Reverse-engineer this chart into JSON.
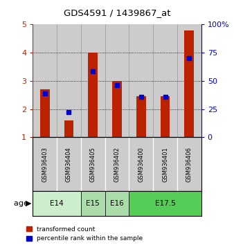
{
  "title": "GDS4591 / 1439867_at",
  "samples": [
    "GSM936403",
    "GSM936404",
    "GSM936405",
    "GSM936402",
    "GSM936400",
    "GSM936401",
    "GSM936406"
  ],
  "transformed_count": [
    2.7,
    1.6,
    4.0,
    3.0,
    2.45,
    2.45,
    4.8
  ],
  "percentile_rank": [
    2.55,
    1.9,
    3.35,
    2.85,
    2.42,
    2.42,
    3.8
  ],
  "ylim": [
    1,
    5
  ],
  "yticks": [
    1,
    2,
    3,
    4,
    5
  ],
  "y2ticks": [
    0,
    25,
    50,
    75,
    100
  ],
  "y2tick_labels": [
    "0",
    "25",
    "50",
    "75",
    "100%"
  ],
  "bar_color": "#bb2200",
  "dot_color": "#0000cc",
  "age_groups": [
    {
      "label": "E14",
      "start": 0,
      "end": 1,
      "color": "#cceecc"
    },
    {
      "label": "E15",
      "start": 2,
      "end": 2,
      "color": "#aaddaa"
    },
    {
      "label": "E16",
      "start": 3,
      "end": 3,
      "color": "#aaddaa"
    },
    {
      "label": "E17.5",
      "start": 4,
      "end": 6,
      "color": "#44cc44"
    }
  ],
  "legend_red": "transformed count",
  "legend_blue": "percentile rank within the sample",
  "bar_width": 0.4,
  "col_bg_color": "#cccccc",
  "col_border_color": "#999999",
  "plot_bg_color": "#ffffff"
}
